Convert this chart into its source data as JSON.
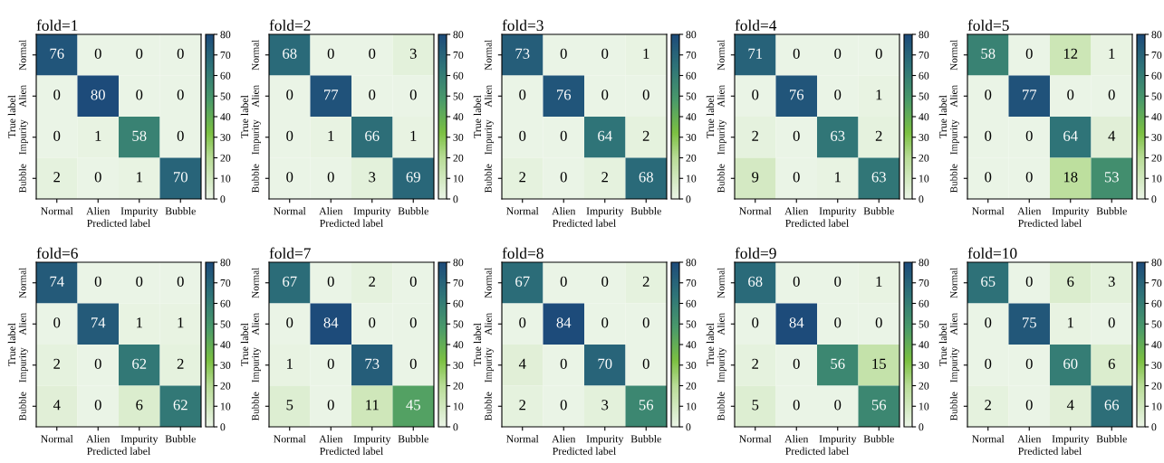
{
  "chart_data": [
    {
      "type": "heatmap",
      "title": "fold=1",
      "xlabel": "Predicted label",
      "ylabel": "True label",
      "categories": [
        "Normal",
        "Alien",
        "Impurity",
        "Bubble"
      ],
      "y_categories": [
        "Normal",
        "Alien",
        "Impurity",
        "Bubble"
      ],
      "cells": [
        [
          76,
          0,
          0,
          0
        ],
        [
          0,
          80,
          0,
          0
        ],
        [
          0,
          1,
          58,
          0
        ],
        [
          2,
          0,
          1,
          70
        ]
      ],
      "clim": [
        0,
        80
      ],
      "cticks": [
        0,
        10,
        20,
        30,
        40,
        50,
        60,
        70,
        80
      ],
      "data_labels": true
    },
    {
      "type": "heatmap",
      "title": "fold=2",
      "xlabel": "Predicted label",
      "ylabel": "True label",
      "categories": [
        "Normal",
        "Alien",
        "Impurity",
        "Bubble"
      ],
      "y_categories": [
        "Normal",
        "Alien",
        "Impurity",
        "Bubble"
      ],
      "cells": [
        [
          68,
          0,
          0,
          3
        ],
        [
          0,
          77,
          0,
          0
        ],
        [
          0,
          1,
          66,
          1
        ],
        [
          0,
          0,
          3,
          69
        ]
      ],
      "clim": [
        0,
        80
      ],
      "cticks": [
        0,
        10,
        20,
        30,
        40,
        50,
        60,
        70,
        80
      ],
      "data_labels": true
    },
    {
      "type": "heatmap",
      "title": "fold=3",
      "xlabel": "Predicted label",
      "ylabel": "True label",
      "categories": [
        "Normal",
        "Alien",
        "Impurity",
        "Bubble"
      ],
      "y_categories": [
        "Normal",
        "Alien",
        "Impurity",
        "Bubble"
      ],
      "cells": [
        [
          73,
          0,
          0,
          1
        ],
        [
          0,
          76,
          0,
          0
        ],
        [
          0,
          0,
          64,
          2
        ],
        [
          2,
          0,
          2,
          68
        ]
      ],
      "clim": [
        0,
        80
      ],
      "cticks": [
        0,
        10,
        20,
        30,
        40,
        50,
        60,
        70,
        80
      ],
      "data_labels": true
    },
    {
      "type": "heatmap",
      "title": "fold=4",
      "xlabel": "Predicted label",
      "ylabel": "True label",
      "categories": [
        "Normal",
        "Alien",
        "Impurity",
        "Bubble"
      ],
      "y_categories": [
        "Normal",
        "Alien",
        "Impurity",
        "Bubble"
      ],
      "cells": [
        [
          71,
          0,
          0,
          0
        ],
        [
          0,
          76,
          0,
          1
        ],
        [
          2,
          0,
          63,
          2
        ],
        [
          9,
          0,
          1,
          63
        ]
      ],
      "clim": [
        0,
        80
      ],
      "cticks": [
        0,
        10,
        20,
        30,
        40,
        50,
        60,
        70,
        80
      ],
      "data_labels": true
    },
    {
      "type": "heatmap",
      "title": "fold=5",
      "xlabel": "Predicted label",
      "ylabel": "True label",
      "categories": [
        "Normal",
        "Alien",
        "Impurity",
        "Bubble"
      ],
      "y_categories": [
        "Normal",
        "Alien",
        "Impurity",
        "Bubble"
      ],
      "cells": [
        [
          58,
          0,
          12,
          1
        ],
        [
          0,
          77,
          0,
          0
        ],
        [
          0,
          0,
          64,
          4
        ],
        [
          0,
          0,
          18,
          53
        ]
      ],
      "clim": [
        0,
        80
      ],
      "cticks": [
        0,
        10,
        20,
        30,
        40,
        50,
        60,
        70,
        80
      ],
      "data_labels": true
    },
    {
      "type": "heatmap",
      "title": "fold=6",
      "xlabel": "Predicted label",
      "ylabel": "True label",
      "categories": [
        "Normal",
        "Alien",
        "Impurity",
        "Bubble"
      ],
      "y_categories": [
        "Normal",
        "Alien",
        "Impurity",
        "Bubble"
      ],
      "cells": [
        [
          74,
          0,
          0,
          0
        ],
        [
          0,
          74,
          1,
          1
        ],
        [
          2,
          0,
          62,
          2
        ],
        [
          4,
          0,
          6,
          62
        ]
      ],
      "clim": [
        0,
        80
      ],
      "cticks": [
        0,
        10,
        20,
        30,
        40,
        50,
        60,
        70,
        80
      ],
      "data_labels": true
    },
    {
      "type": "heatmap",
      "title": "fold=7",
      "xlabel": "Predicted label",
      "ylabel": "True label",
      "categories": [
        "Normal",
        "Alien",
        "Impurity",
        "Bubble"
      ],
      "y_categories": [
        "Normal",
        "Alien",
        "Impurity",
        "Bubble"
      ],
      "cells": [
        [
          67,
          0,
          2,
          0
        ],
        [
          0,
          84,
          0,
          0
        ],
        [
          1,
          0,
          73,
          0
        ],
        [
          5,
          0,
          11,
          45
        ]
      ],
      "clim": [
        0,
        80
      ],
      "cticks": [
        0,
        10,
        20,
        30,
        40,
        50,
        60,
        70,
        80
      ],
      "data_labels": true
    },
    {
      "type": "heatmap",
      "title": "fold=8",
      "xlabel": "Predicted label",
      "ylabel": "True label",
      "categories": [
        "Normal",
        "Alien",
        "Impurity",
        "Bubble"
      ],
      "y_categories": [
        "Normal",
        "Alien",
        "Impurity",
        "Bubble"
      ],
      "cells": [
        [
          67,
          0,
          0,
          2
        ],
        [
          0,
          84,
          0,
          0
        ],
        [
          4,
          0,
          70,
          0
        ],
        [
          2,
          0,
          3,
          56
        ]
      ],
      "clim": [
        0,
        80
      ],
      "cticks": [
        0,
        10,
        20,
        30,
        40,
        50,
        60,
        70,
        80
      ],
      "data_labels": true
    },
    {
      "type": "heatmap",
      "title": "fold=9",
      "xlabel": "Predicted label",
      "ylabel": "True label",
      "categories": [
        "Normal",
        "Alien",
        "Impurity",
        "Bubble"
      ],
      "y_categories": [
        "Normal",
        "Alien",
        "Impurity",
        "Bubble"
      ],
      "cells": [
        [
          68,
          0,
          0,
          1
        ],
        [
          0,
          84,
          0,
          0
        ],
        [
          2,
          0,
          56,
          15
        ],
        [
          5,
          0,
          0,
          56
        ]
      ],
      "clim": [
        0,
        80
      ],
      "cticks": [
        0,
        10,
        20,
        30,
        40,
        50,
        60,
        70,
        80
      ],
      "data_labels": true
    },
    {
      "type": "heatmap",
      "title": "fold=10",
      "xlabel": "Predicted label",
      "ylabel": "True label",
      "categories": [
        "Normal",
        "Alien",
        "Impurity",
        "Bubble"
      ],
      "y_categories": [
        "Normal",
        "Alien",
        "Impurity",
        "Bubble"
      ],
      "cells": [
        [
          65,
          0,
          6,
          3
        ],
        [
          0,
          75,
          1,
          0
        ],
        [
          0,
          0,
          60,
          6
        ],
        [
          2,
          0,
          4,
          66
        ]
      ],
      "clim": [
        0,
        80
      ],
      "cticks": [
        0,
        10,
        20,
        30,
        40,
        50,
        60,
        70,
        80
      ],
      "data_labels": true
    }
  ]
}
